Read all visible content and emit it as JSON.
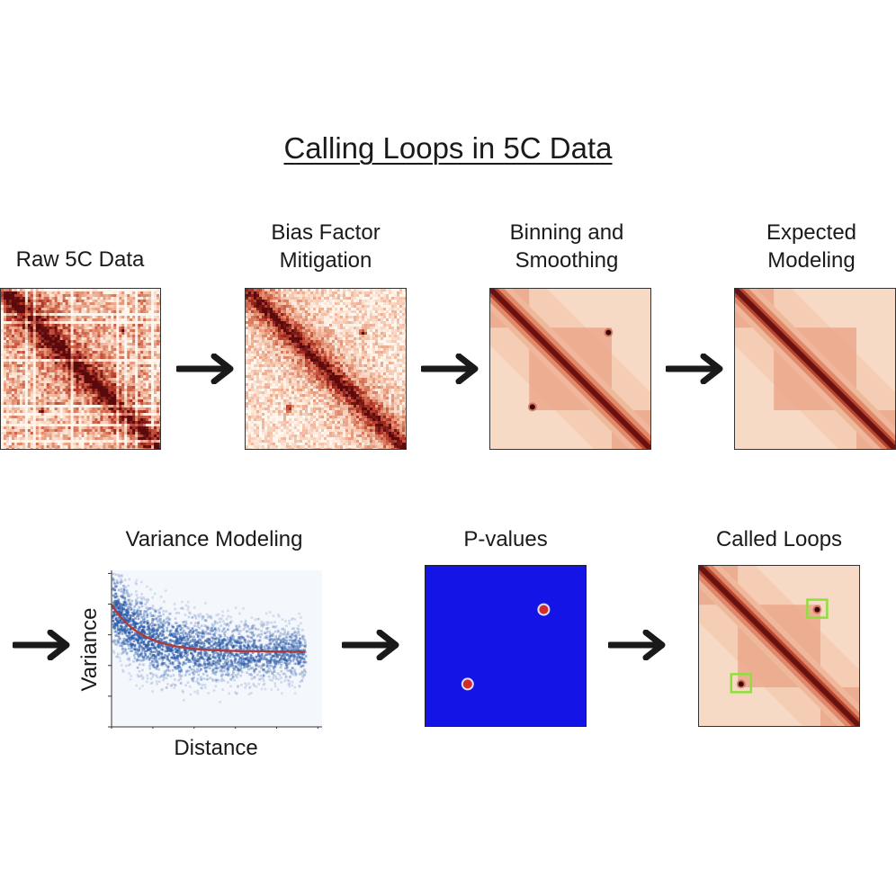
{
  "title": "Calling Loops in 5C Data",
  "steps": {
    "raw": "Raw 5C Data",
    "bias": "Bias Factor\nMitigation",
    "binning": "Binning and\nSmoothing",
    "expected": "Expected\nModeling",
    "variance": "Variance Modeling",
    "pvalues": "P-values",
    "called": "Called Loops"
  },
  "variance_plot": {
    "xlabel": "Distance",
    "ylabel": "Variance"
  },
  "colors": {
    "heat_dark": "#4a0a0a",
    "heat_mid": "#c8503a",
    "heat_light": "#f6d6c0",
    "pvalue_bg": "#1414e6",
    "pvalue_spot": "#d42a2a",
    "loop_box": "#8ee03c",
    "scatter": "#2a5aa8",
    "trend": "#b03a3a"
  },
  "icons": [
    "arrow-right-icon"
  ]
}
